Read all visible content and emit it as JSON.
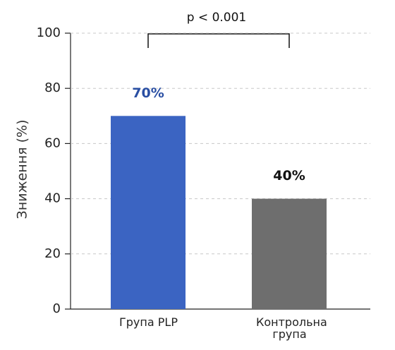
{
  "chart_data": {
    "type": "bar",
    "y_label": "Зниження (%)",
    "annotation": "p < 0.001",
    "categories": [
      "Група PLP",
      "Контрольна група"
    ],
    "values": [
      70,
      40
    ],
    "value_labels": [
      "70%",
      "40%"
    ],
    "colors": [
      "#3b64c2",
      "#6e6e6e"
    ],
    "label_colors": [
      "#2a4fa3",
      "#111111"
    ],
    "ylim": [
      0,
      100
    ],
    "yticks": [
      0,
      20,
      40,
      60,
      80,
      100
    ],
    "grid": true
  }
}
